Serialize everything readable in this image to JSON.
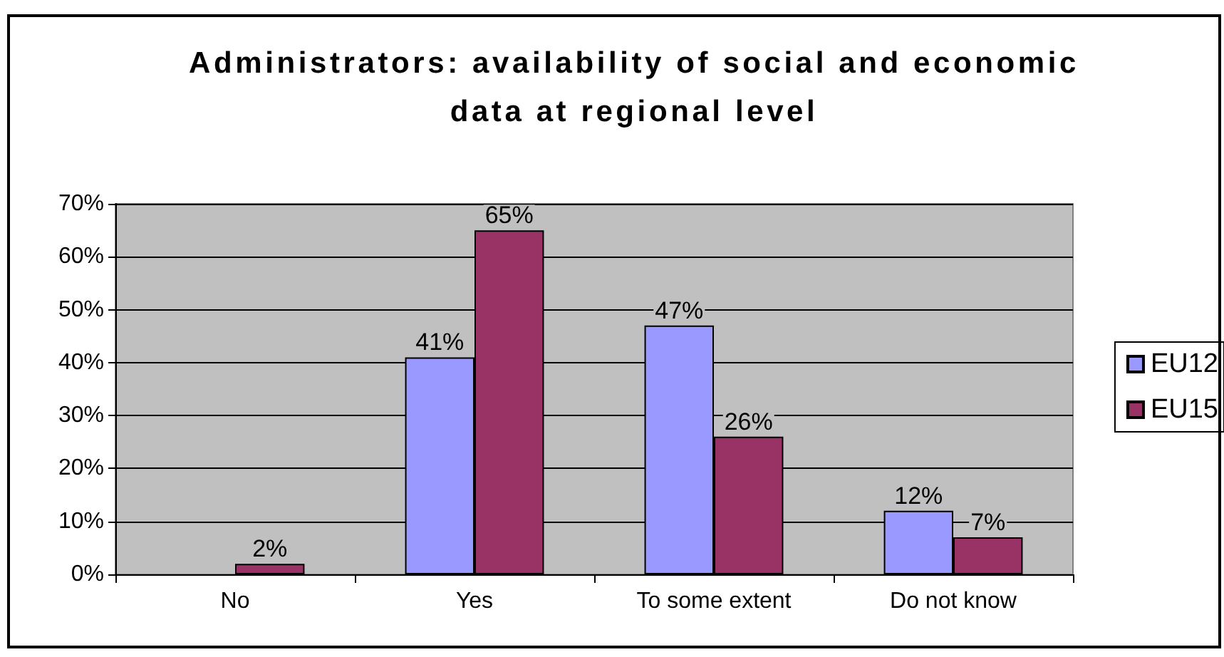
{
  "chart_data": {
    "type": "bar",
    "title": "Administrators: availability of social and economic data at regional level",
    "categories": [
      "No",
      "Yes",
      "To some extent",
      "Do not know"
    ],
    "series": [
      {
        "name": "EU12",
        "color": "#9999ff",
        "values": [
          null,
          41,
          47,
          12
        ],
        "value_labels": [
          null,
          "41%",
          "47%",
          "12%"
        ]
      },
      {
        "name": "EU15",
        "color": "#993366",
        "values": [
          2,
          65,
          26,
          7
        ],
        "value_labels": [
          "2%",
          "65%",
          "26%",
          "7%"
        ]
      }
    ],
    "ylim": [
      0,
      70
    ],
    "yticks": [
      {
        "value": 0,
        "label": "0%"
      },
      {
        "value": 10,
        "label": "10%"
      },
      {
        "value": 20,
        "label": "20%"
      },
      {
        "value": 30,
        "label": "30%"
      },
      {
        "value": 40,
        "label": "40%"
      },
      {
        "value": 50,
        "label": "50%"
      },
      {
        "value": 60,
        "label": "60%"
      },
      {
        "value": 70,
        "label": "70%"
      }
    ],
    "grid": "y",
    "legend": "right"
  }
}
